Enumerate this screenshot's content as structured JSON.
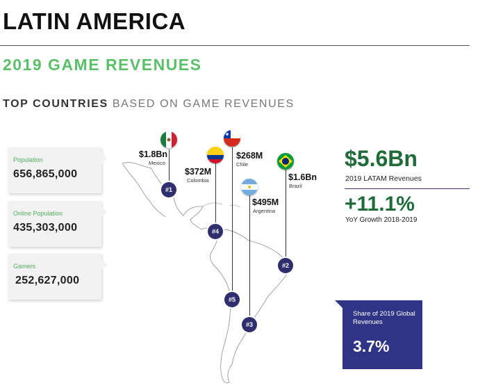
{
  "title": "LATIN AMERICA",
  "subtitle": "2019 GAME REVENUES",
  "section": {
    "bold": "TOP COUNTRIES",
    "rest": "BASED ON GAME REVENUES"
  },
  "stats": [
    {
      "label": "Population",
      "value": "656,865,000"
    },
    {
      "label": "Online Population",
      "value": "435,303,000"
    },
    {
      "label": "Gamers",
      "value": "252,627,000"
    }
  ],
  "countries": [
    {
      "rank": "#1",
      "amount": "$1.8Bn",
      "name": "Mexico"
    },
    {
      "rank": "#2",
      "amount": "$1.6Bn",
      "name": "Brazil"
    },
    {
      "rank": "#3",
      "amount": "$495M",
      "name": "Argentina"
    },
    {
      "rank": "#4",
      "amount": "$372M",
      "name": "Colombia"
    },
    {
      "rank": "#5",
      "amount": "$268M",
      "name": "Chile"
    }
  ],
  "summary": {
    "revenue": "$5.6Bn",
    "revenue_label": "2019 LATAM Revenues",
    "growth": "+11.1%",
    "growth_label": "YoY Growth 2018-2019",
    "share_label": "Share of 2019 Global Revenues",
    "share_value": "3.7%"
  },
  "colors": {
    "accent_green": "#5cc06b",
    "dark_green": "#1f6b3a",
    "navy": "#2f3486",
    "marker": "#2f2e6e"
  }
}
